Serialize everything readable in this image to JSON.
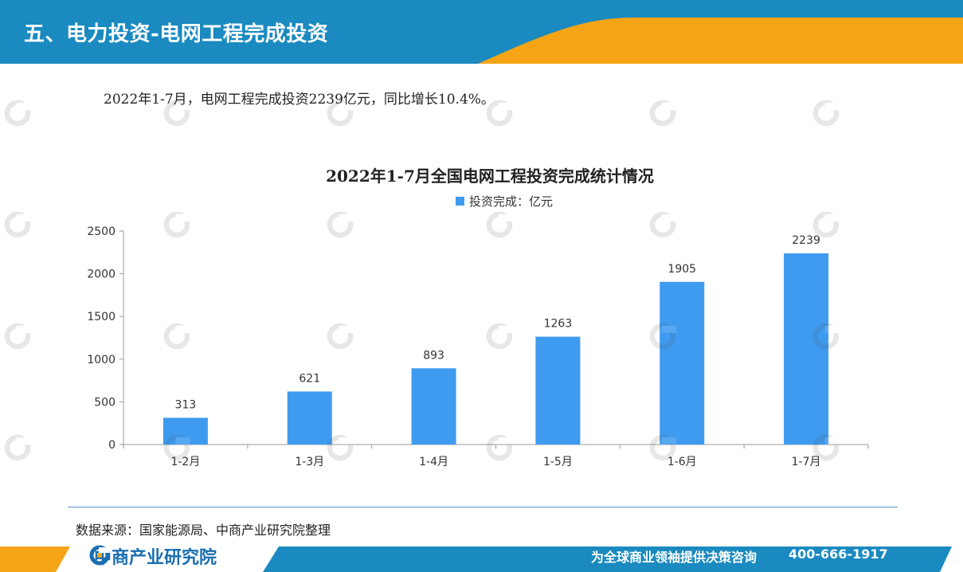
{
  "header": {
    "title": "五、电力投资-电网工程完成投资"
  },
  "summary": "2022年1-7月，电网工程完成投资2239亿元，同比增长10.4%。",
  "chart_data": {
    "type": "bar",
    "title": "2022年1-7月全国电网工程投资完成统计情况",
    "categories": [
      "1-2月",
      "1-3月",
      "1-4月",
      "1-5月",
      "1-6月",
      "1-7月"
    ],
    "series": [
      {
        "name": "投资完成：亿元",
        "values": [
          313,
          621,
          893,
          1263,
          1905,
          2239
        ]
      }
    ],
    "ylim": [
      0,
      2500
    ],
    "yticks": [
      0,
      500,
      1000,
      1500,
      2000,
      2500
    ],
    "legend": "top-center",
    "grid": false,
    "bar_color": "#3f9bef",
    "xlabel": "",
    "ylabel": ""
  },
  "footer": {
    "source": "数据来源：国家能源局、中商产业研究院整理",
    "brand": "中商产业研究院",
    "slogan": "为全球商业领袖提供决策咨询",
    "phone": "400-666-1917"
  },
  "colors": {
    "primary_blue": "#1a8ac0",
    "accent_orange": "#f5a416",
    "bar": "#3f9bef"
  }
}
